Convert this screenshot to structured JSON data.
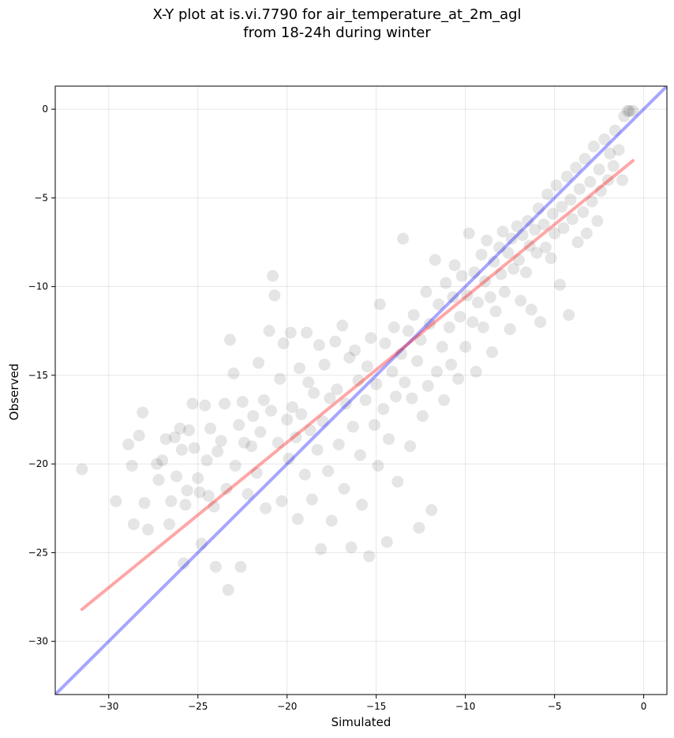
{
  "chart_data": {
    "type": "scatter",
    "title_lines": [
      "X-Y plot at is.vi.7790 for air_temperature_at_2m_agl",
      "from 18-24h during winter"
    ],
    "xlabel": "Simulated",
    "ylabel": "Observed",
    "xlim": [
      -33.0,
      1.3
    ],
    "ylim": [
      -33.0,
      1.3
    ],
    "xticks": [
      -30,
      -25,
      -20,
      -15,
      -10,
      -5,
      0
    ],
    "yticks": [
      -30,
      -25,
      -20,
      -15,
      -10,
      -5,
      0
    ],
    "xtick_labels": [
      "−30",
      "−25",
      "−20",
      "−15",
      "−10",
      "−5",
      "0"
    ],
    "ytick_labels": [
      "−30",
      "−25",
      "−20",
      "−15",
      "−10",
      "−5",
      "0"
    ],
    "grid": true,
    "point_color": "#000000",
    "point_alpha": 0.1,
    "points": [
      [
        -31.5,
        -20.3
      ],
      [
        -29.6,
        -22.1
      ],
      [
        -28.9,
        -18.9
      ],
      [
        -28.7,
        -20.1
      ],
      [
        -28.6,
        -23.4
      ],
      [
        -28.3,
        -18.4
      ],
      [
        -28.1,
        -17.1
      ],
      [
        -28.0,
        -22.2
      ],
      [
        -27.8,
        -23.7
      ],
      [
        -27.3,
        -20.0
      ],
      [
        -27.2,
        -20.9
      ],
      [
        -27.0,
        -19.8
      ],
      [
        -26.8,
        -18.6
      ],
      [
        -26.6,
        -23.4
      ],
      [
        -26.5,
        -22.1
      ],
      [
        -26.3,
        -18.5
      ],
      [
        -26.2,
        -20.7
      ],
      [
        -26.0,
        -18.0
      ],
      [
        -25.9,
        -19.2
      ],
      [
        -25.8,
        -25.6
      ],
      [
        -25.7,
        -22.3
      ],
      [
        -25.6,
        -21.5
      ],
      [
        -25.5,
        -18.1
      ],
      [
        -25.3,
        -16.6
      ],
      [
        -25.2,
        -19.1
      ],
      [
        -25.0,
        -20.8
      ],
      [
        -24.9,
        -21.6
      ],
      [
        -24.8,
        -24.5
      ],
      [
        -24.6,
        -16.7
      ],
      [
        -24.5,
        -19.8
      ],
      [
        -24.4,
        -21.8
      ],
      [
        -24.3,
        -18.0
      ],
      [
        -24.1,
        -22.4
      ],
      [
        -24.0,
        -25.8
      ],
      [
        -23.9,
        -19.3
      ],
      [
        -23.7,
        -18.7
      ],
      [
        -23.5,
        -16.6
      ],
      [
        -23.4,
        -21.4
      ],
      [
        -23.3,
        -27.1
      ],
      [
        -23.2,
        -13.0
      ],
      [
        -23.0,
        -14.9
      ],
      [
        -22.9,
        -20.1
      ],
      [
        -22.7,
        -17.8
      ],
      [
        -22.6,
        -25.8
      ],
      [
        -22.5,
        -16.5
      ],
      [
        -22.4,
        -18.8
      ],
      [
        -22.2,
        -21.7
      ],
      [
        -22.0,
        -19.0
      ],
      [
        -21.9,
        -17.3
      ],
      [
        -21.7,
        -20.5
      ],
      [
        -21.6,
        -14.3
      ],
      [
        -21.5,
        -18.2
      ],
      [
        -21.3,
        -16.4
      ],
      [
        -21.2,
        -22.5
      ],
      [
        -21.0,
        -12.5
      ],
      [
        -20.9,
        -17.0
      ],
      [
        -20.8,
        -9.4
      ],
      [
        -20.7,
        -10.5
      ],
      [
        -20.5,
        -18.8
      ],
      [
        -20.4,
        -15.2
      ],
      [
        -20.3,
        -22.1
      ],
      [
        -20.2,
        -13.2
      ],
      [
        -20.0,
        -17.5
      ],
      [
        -19.9,
        -19.7
      ],
      [
        -19.8,
        -12.6
      ],
      [
        -19.7,
        -16.8
      ],
      [
        -19.5,
        -18.5
      ],
      [
        -19.4,
        -23.1
      ],
      [
        -19.3,
        -14.6
      ],
      [
        -19.2,
        -17.2
      ],
      [
        -19.0,
        -20.6
      ],
      [
        -18.9,
        -12.6
      ],
      [
        -18.8,
        -15.4
      ],
      [
        -18.7,
        -18.1
      ],
      [
        -18.6,
        -22.0
      ],
      [
        -18.5,
        -16.0
      ],
      [
        -18.3,
        -19.2
      ],
      [
        -18.2,
        -13.3
      ],
      [
        -18.1,
        -24.8
      ],
      [
        -18.0,
        -17.6
      ],
      [
        -17.9,
        -14.4
      ],
      [
        -17.7,
        -20.4
      ],
      [
        -17.6,
        -16.3
      ],
      [
        -17.5,
        -23.2
      ],
      [
        -17.3,
        -13.1
      ],
      [
        -17.2,
        -15.8
      ],
      [
        -17.1,
        -18.9
      ],
      [
        -16.9,
        -12.2
      ],
      [
        -16.8,
        -21.4
      ],
      [
        -16.7,
        -16.6
      ],
      [
        -16.5,
        -14.0
      ],
      [
        -16.4,
        -24.7
      ],
      [
        -16.3,
        -17.9
      ],
      [
        -16.2,
        -13.6
      ],
      [
        -16.0,
        -15.3
      ],
      [
        -15.9,
        -19.5
      ],
      [
        -15.8,
        -22.3
      ],
      [
        -15.6,
        -16.4
      ],
      [
        -15.5,
        -14.5
      ],
      [
        -15.4,
        -25.2
      ],
      [
        -15.3,
        -12.9
      ],
      [
        -15.1,
        -17.8
      ],
      [
        -15.0,
        -15.5
      ],
      [
        -14.9,
        -20.1
      ],
      [
        -14.8,
        -11.0
      ],
      [
        -14.6,
        -16.9
      ],
      [
        -14.5,
        -13.2
      ],
      [
        -14.4,
        -24.4
      ],
      [
        -14.3,
        -18.6
      ],
      [
        -14.1,
        -14.8
      ],
      [
        -14.0,
        -12.3
      ],
      [
        -13.9,
        -16.2
      ],
      [
        -13.8,
        -21.0
      ],
      [
        -13.6,
        -13.8
      ],
      [
        -13.5,
        -7.3
      ],
      [
        -13.4,
        -15.4
      ],
      [
        -13.2,
        -12.5
      ],
      [
        -13.1,
        -19.0
      ],
      [
        -13.0,
        -16.3
      ],
      [
        -12.9,
        -11.6
      ],
      [
        -12.7,
        -14.2
      ],
      [
        -12.6,
        -23.6
      ],
      [
        -12.5,
        -13.0
      ],
      [
        -12.4,
        -17.3
      ],
      [
        -12.2,
        -10.3
      ],
      [
        -12.1,
        -15.6
      ],
      [
        -12.0,
        -12.1
      ],
      [
        -11.9,
        -22.6
      ],
      [
        -11.7,
        -8.5
      ],
      [
        -11.6,
        -14.8
      ],
      [
        -11.5,
        -11.0
      ],
      [
        -11.3,
        -13.4
      ],
      [
        -11.2,
        -16.4
      ],
      [
        -11.1,
        -9.8
      ],
      [
        -10.9,
        -12.3
      ],
      [
        -10.8,
        -14.4
      ],
      [
        -10.7,
        -10.6
      ],
      [
        -10.6,
        -8.8
      ],
      [
        -10.4,
        -15.2
      ],
      [
        -10.3,
        -11.7
      ],
      [
        -10.2,
        -9.4
      ],
      [
        -10.0,
        -13.4
      ],
      [
        -9.9,
        -10.5
      ],
      [
        -9.8,
        -7.0
      ],
      [
        -9.6,
        -12.0
      ],
      [
        -9.5,
        -9.2
      ],
      [
        -9.4,
        -14.8
      ],
      [
        -9.3,
        -10.9
      ],
      [
        -9.1,
        -8.2
      ],
      [
        -9.0,
        -12.3
      ],
      [
        -8.9,
        -9.7
      ],
      [
        -8.8,
        -7.4
      ],
      [
        -8.6,
        -10.6
      ],
      [
        -8.5,
        -13.7
      ],
      [
        -8.4,
        -8.6
      ],
      [
        -8.3,
        -11.4
      ],
      [
        -8.1,
        -7.8
      ],
      [
        -8.0,
        -9.3
      ],
      [
        -7.9,
        -6.9
      ],
      [
        -7.8,
        -10.3
      ],
      [
        -7.6,
        -8.1
      ],
      [
        -7.5,
        -12.4
      ],
      [
        -7.4,
        -7.3
      ],
      [
        -7.3,
        -9.0
      ],
      [
        -7.1,
        -6.6
      ],
      [
        -7.0,
        -8.5
      ],
      [
        -6.9,
        -10.8
      ],
      [
        -6.8,
        -7.1
      ],
      [
        -6.6,
        -9.2
      ],
      [
        -6.5,
        -6.3
      ],
      [
        -6.4,
        -7.7
      ],
      [
        -6.3,
        -11.3
      ],
      [
        -6.1,
        -6.8
      ],
      [
        -6.0,
        -8.1
      ],
      [
        -5.9,
        -5.6
      ],
      [
        -5.8,
        -12.0
      ],
      [
        -5.6,
        -6.5
      ],
      [
        -5.5,
        -7.8
      ],
      [
        -5.4,
        -4.8
      ],
      [
        -5.2,
        -8.4
      ],
      [
        -5.1,
        -5.9
      ],
      [
        -5.0,
        -7.0
      ],
      [
        -4.9,
        -4.3
      ],
      [
        -4.7,
        -9.9
      ],
      [
        -4.6,
        -5.5
      ],
      [
        -4.5,
        -6.7
      ],
      [
        -4.3,
        -3.8
      ],
      [
        -4.2,
        -11.6
      ],
      [
        -4.1,
        -5.1
      ],
      [
        -4.0,
        -6.2
      ],
      [
        -3.8,
        -3.3
      ],
      [
        -3.7,
        -7.5
      ],
      [
        -3.6,
        -4.5
      ],
      [
        -3.4,
        -5.8
      ],
      [
        -3.3,
        -2.8
      ],
      [
        -3.2,
        -7.0
      ],
      [
        -3.0,
        -4.1
      ],
      [
        -2.9,
        -5.2
      ],
      [
        -2.8,
        -2.1
      ],
      [
        -2.6,
        -6.3
      ],
      [
        -2.5,
        -3.4
      ],
      [
        -2.4,
        -4.6
      ],
      [
        -2.2,
        -1.7
      ],
      [
        -2.0,
        -4.0
      ],
      [
        -1.9,
        -2.5
      ],
      [
        -1.7,
        -3.2
      ],
      [
        -1.6,
        -1.2
      ],
      [
        -1.4,
        -2.3
      ],
      [
        -1.2,
        -4.0
      ],
      [
        -1.1,
        -0.4
      ],
      [
        -0.9,
        -0.1
      ],
      [
        -0.8,
        -0.1
      ],
      [
        -0.6,
        -0.1
      ]
    ],
    "lines": [
      {
        "color": "#0000ff",
        "alpha": 0.35,
        "x": [
          -33.0,
          1.3
        ],
        "y": [
          -33.0,
          1.3
        ]
      },
      {
        "color": "#ff0000",
        "alpha": 0.35,
        "x": [
          -31.5,
          -0.6
        ],
        "y": [
          -28.2,
          -2.9
        ]
      }
    ]
  }
}
